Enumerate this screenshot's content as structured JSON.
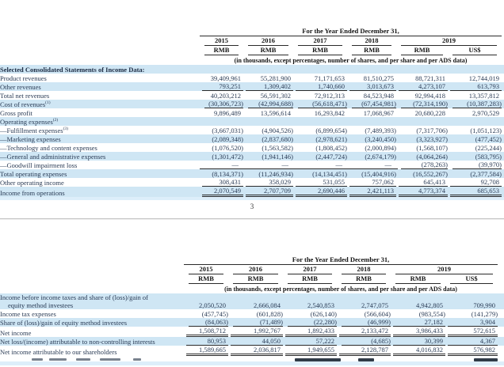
{
  "colors": {
    "row_shade": "#cfe6f4",
    "text": "#2a3b55"
  },
  "header": {
    "title": "For the Year Ended December 31,",
    "years": [
      "2015",
      "2016",
      "2017",
      "2018",
      "2019"
    ],
    "currencies": [
      "RMB",
      "RMB",
      "RMB",
      "RMB",
      "RMB",
      "US$"
    ],
    "note": "(in thousands, except percentages, number of shares, and per share and per ADS data)"
  },
  "page_number": "3",
  "table1": {
    "rows": [
      {
        "label": "Selected Consolidated Statements of Income Data:",
        "section": true,
        "shaded": true,
        "values": null
      },
      {
        "label": "Product revenues",
        "shaded": false,
        "values": [
          "39,409,961",
          "55,281,900",
          "71,171,653",
          "81,510,275",
          "88,721,311",
          "12,744,019"
        ]
      },
      {
        "label": "Other revenues",
        "shaded": true,
        "rule": "below",
        "values": [
          "793,251",
          "1,309,402",
          "1,740,660",
          "3,013,673",
          "4,273,107",
          "613,793"
        ]
      },
      {
        "label": "Total net revenues",
        "shaded": false,
        "values": [
          "40,203,212",
          "56,591,302",
          "72,912,313",
          "84,523,948",
          "92,994,418",
          "13,357,812"
        ]
      },
      {
        "label": "Cost of revenues",
        "sup": "(1)",
        "shaded": true,
        "rule": "below",
        "values": [
          "(30,306,723)",
          "(42,994,688)",
          "(56,618,471)",
          "(67,454,981)",
          "(72,314,190)",
          "(10,387,283)"
        ]
      },
      {
        "label": "Gross profit",
        "shaded": false,
        "values": [
          "9,896,489",
          "13,596,614",
          "16,293,842",
          "17,068,967",
          "20,680,228",
          "2,970,529"
        ]
      },
      {
        "label": "Operating expenses",
        "sup": "(2)",
        "shaded": true,
        "values": null
      },
      {
        "label": "—Fulfillment expenses",
        "sup": "(3)",
        "indent": true,
        "shaded": false,
        "values": [
          "(3,667,031)",
          "(4,904,526)",
          "(6,899,654)",
          "(7,489,393)",
          "(7,317,706)",
          "(1,051,123)"
        ]
      },
      {
        "label": "—Marketing expenses",
        "indent": true,
        "shaded": true,
        "values": [
          "(2,089,348)",
          "(2,837,680)",
          "(2,978,621)",
          "(3,240,450)",
          "(3,323,927)",
          "(477,452)"
        ]
      },
      {
        "label": "—Technology and content expenses",
        "indent": true,
        "shaded": false,
        "values": [
          "(1,076,520)",
          "(1,563,582)",
          "(1,808,452)",
          "(2,000,894)",
          "(1,568,107)",
          "(225,244)"
        ]
      },
      {
        "label": "—General and administrative expenses",
        "indent": true,
        "shaded": true,
        "values": [
          "(1,301,472)",
          "(1,941,146)",
          "(2,447,724)",
          "(2,674,179)",
          "(4,064,264)",
          "(583,795)"
        ]
      },
      {
        "label": "—Goodwill impairment loss",
        "indent": true,
        "shaded": false,
        "rule": "below",
        "values": [
          "—",
          "—",
          "—",
          "—",
          "(278,263)",
          "(39,970)"
        ]
      },
      {
        "label": "Total operating expenses",
        "shaded": true,
        "values": [
          "(8,134,371)",
          "(11,246,934)",
          "(14,134,451)",
          "(15,404,916)",
          "(16,552,267)",
          "(2,377,584)"
        ]
      },
      {
        "label": "Other operating income",
        "shaded": false,
        "rule": "below",
        "values": [
          "308,431",
          "358,029",
          "531,055",
          "757,062",
          "645,413",
          "92,708"
        ]
      },
      {
        "label": "Income from operations",
        "shaded": true,
        "rule": "double",
        "values": [
          "2,070,549",
          "2,707,709",
          "2,690,446",
          "2,421,113",
          "4,773,374",
          "685,653"
        ]
      }
    ]
  },
  "table2": {
    "rows": [
      {
        "label": "Income before income taxes and share of (loss)/gain of",
        "label2": "equity method investees",
        "shaded": true,
        "values": [
          "2,050,520",
          "2,666,084",
          "2,540,853",
          "2,747,075",
          "4,942,805",
          "709,990"
        ]
      },
      {
        "label": "Income tax expenses",
        "shaded": false,
        "values": [
          "(457,745)",
          "(601,828)",
          "(626,140)",
          "(566,604)",
          "(983,554)",
          "(141,279)"
        ]
      },
      {
        "label": "Share of (loss)/gain of equity method investees",
        "shaded": true,
        "rule": "below",
        "values": [
          "(84,063)",
          "(71,489)",
          "(22,280)",
          "(46,999)",
          "27,182",
          "3,904"
        ]
      },
      {
        "label": "Net income",
        "shaded": false,
        "rule": "double",
        "values": [
          "1,508,712",
          "1,992,767",
          "1,892,433",
          "2,133,472",
          "3,986,433",
          "572,615"
        ]
      },
      {
        "label": "Net loss/(income) attributable to non-controlling interests",
        "shaded": true,
        "rule": "below",
        "values": [
          "80,953",
          "44,050",
          "57,222",
          "(4,685)",
          "30,399",
          "4,367"
        ]
      },
      {
        "label": "Net income attributable to our shareholders",
        "shaded": false,
        "rule": "double",
        "values": [
          "1,589,665",
          "2,036,817",
          "1,949,655",
          "2,128,787",
          "4,016,832",
          "576,982"
        ]
      }
    ]
  }
}
